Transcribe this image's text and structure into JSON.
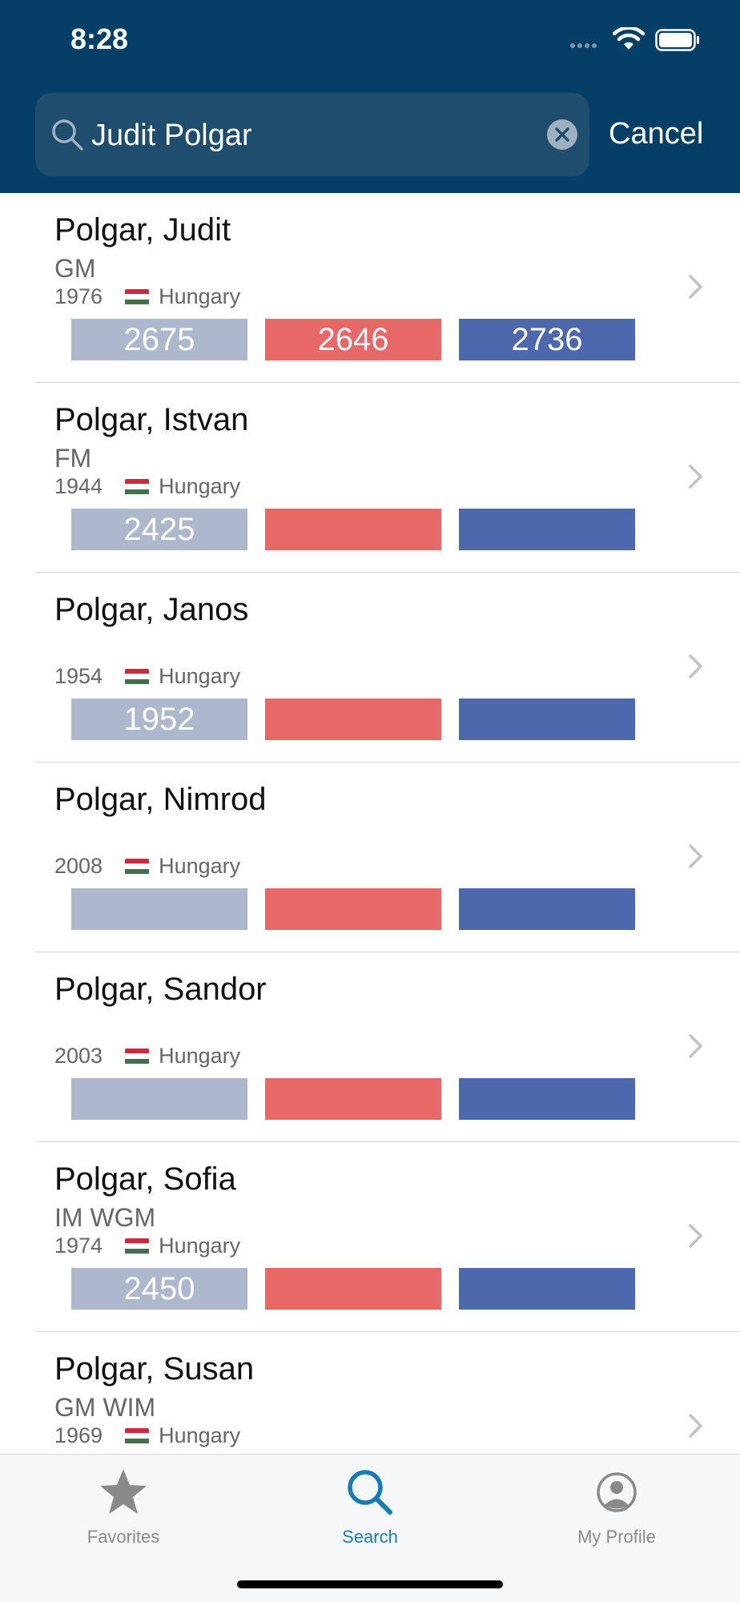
{
  "status_bar": {
    "time": "8:28"
  },
  "search": {
    "query": "Judit Polgar",
    "cancel_label": "Cancel"
  },
  "colors": {
    "header": "#033f66",
    "standard": "#adb8cc",
    "rapid": "#e86868",
    "blitz": "#4e68ad",
    "active_tab": "#1a7bb0"
  },
  "players": [
    {
      "name": "Polgar, Judit",
      "title": "GM",
      "year": "1976",
      "country": "Hungary",
      "standard": "2675",
      "rapid": "2646",
      "blitz": "2736"
    },
    {
      "name": "Polgar, Istvan",
      "title": "FM",
      "year": "1944",
      "country": "Hungary",
      "standard": "2425",
      "rapid": "",
      "blitz": ""
    },
    {
      "name": "Polgar, Janos",
      "title": "",
      "year": "1954",
      "country": "Hungary",
      "standard": "1952",
      "rapid": "",
      "blitz": ""
    },
    {
      "name": "Polgar, Nimrod",
      "title": "",
      "year": "2008",
      "country": "Hungary",
      "standard": "",
      "rapid": "",
      "blitz": ""
    },
    {
      "name": "Polgar, Sandor",
      "title": "",
      "year": "2003",
      "country": "Hungary",
      "standard": "",
      "rapid": "",
      "blitz": ""
    },
    {
      "name": "Polgar, Sofia",
      "title": "IM WGM",
      "year": "1974",
      "country": "Hungary",
      "standard": "2450",
      "rapid": "",
      "blitz": ""
    },
    {
      "name": "Polgar, Susan",
      "title": "GM WIM",
      "year": "1969",
      "country": "Hungary",
      "standard": "",
      "rapid": "",
      "blitz": ""
    }
  ],
  "tabs": [
    {
      "label": "Favorites",
      "icon": "star-icon"
    },
    {
      "label": "Search",
      "icon": "search-icon"
    },
    {
      "label": "My Profile",
      "icon": "profile-icon"
    }
  ]
}
